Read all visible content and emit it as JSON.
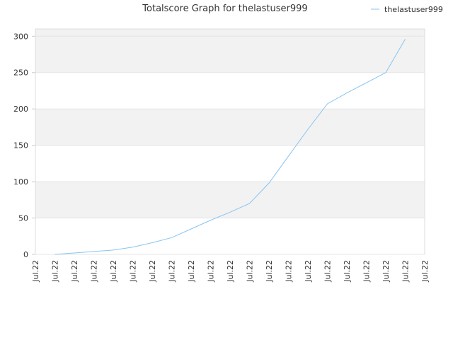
{
  "chart_data": {
    "type": "line",
    "title": "Totalscore Graph for thelastuser999",
    "categories": [
      "Jul.22",
      "Jul.22",
      "Jul.22",
      "Jul.22",
      "Jul.22",
      "Jul.22",
      "Jul.22",
      "Jul.22",
      "Jul.22",
      "Jul.22",
      "Jul.22",
      "Jul.22",
      "Jul.22",
      "Jul.22",
      "Jul.22",
      "Jul.22",
      "Jul.22",
      "Jul.22",
      "Jul.22",
      "Jul.22",
      "Jul.22"
    ],
    "series": [
      {
        "name": "thelastuser999",
        "color": "#88c4f0",
        "values": [
          null,
          0,
          2,
          4,
          6,
          10,
          16,
          23,
          35,
          47,
          58,
          70,
          98,
          135,
          172,
          207,
          222,
          236,
          250,
          296,
          null
        ]
      }
    ],
    "ylim": [
      0,
      310
    ],
    "yticks": [
      0,
      50,
      100,
      150,
      200,
      250,
      300
    ],
    "grid": true,
    "legend": "top-right"
  }
}
